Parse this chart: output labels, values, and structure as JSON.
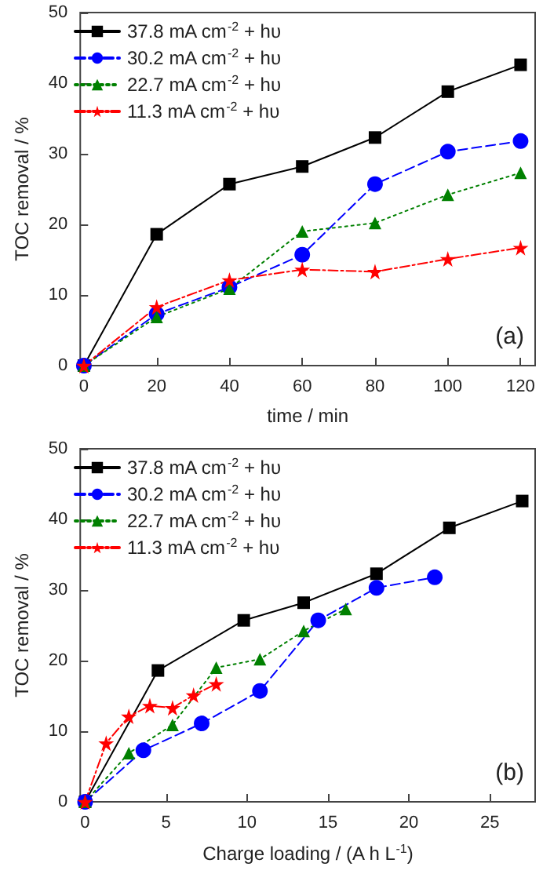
{
  "chart_data": [
    {
      "type": "line",
      "xlabel": "time / min",
      "ylabel": "TOC removal / %",
      "x": [
        0,
        20,
        40,
        60,
        80,
        100,
        120
      ],
      "xlim": [
        -1,
        124
      ],
      "xticks": [
        0,
        20,
        40,
        60,
        80,
        100,
        120
      ],
      "ylim": [
        0,
        50
      ],
      "yticks": [
        0,
        10,
        20,
        30,
        40,
        50
      ],
      "legend": "top left",
      "grid": false,
      "annotations": [
        "(a)"
      ],
      "series": [
        {
          "name": "37.8 mA cm$^{-2}$ + hυ",
          "color": "#000000",
          "marker": "square",
          "line_style": "solid",
          "values": [
            0,
            18.6,
            25.7,
            28.2,
            32.3,
            38.8,
            42.6
          ]
        },
        {
          "name": "30.2 mA cm$^{-2}$ + hυ",
          "color": "#0000ff",
          "marker": "circle",
          "line_style": "dashed",
          "values": [
            0,
            7.3,
            11.1,
            15.7,
            25.7,
            30.3,
            31.8
          ]
        },
        {
          "name": "22.7 mA cm$^{-2}$ + hυ",
          "color": "#008000",
          "marker": "triangle",
          "line_style": "dotted",
          "values": [
            0,
            6.9,
            10.9,
            19.0,
            20.2,
            24.2,
            27.3
          ]
        },
        {
          "name": "11.3 mA cm$^{-2}$ + hυ",
          "color": "#ff0000",
          "marker": "star",
          "line_style": "dashdot",
          "values": [
            0,
            8.3,
            12.1,
            13.6,
            13.3,
            15.1,
            16.7
          ]
        }
      ]
    },
    {
      "type": "line",
      "xlabel": "Charge loading / (A h L$^{-1}$)",
      "ylabel": "TOC removal / %",
      "xlim": [
        -0.3,
        27.8
      ],
      "xticks": [
        0,
        5,
        10,
        15,
        20,
        25
      ],
      "ylim": [
        0,
        50
      ],
      "yticks": [
        0,
        10,
        20,
        30,
        40,
        50
      ],
      "legend": "top left",
      "grid": false,
      "annotations": [
        "(b)"
      ],
      "series": [
        {
          "name": "37.8 mA cm$^{-2}$ + hυ",
          "color": "#000000",
          "marker": "square",
          "line_style": "solid",
          "x": [
            0,
            4.5,
            9.8,
            13.5,
            18.0,
            22.5,
            27.0
          ],
          "values": [
            0,
            18.6,
            25.7,
            28.2,
            32.3,
            38.8,
            42.6
          ]
        },
        {
          "name": "30.2 mA cm$^{-2}$ + hυ",
          "color": "#0000ff",
          "marker": "circle",
          "line_style": "dashed",
          "x": [
            0,
            3.6,
            7.2,
            10.8,
            14.4,
            18.0,
            21.6
          ],
          "values": [
            0,
            7.3,
            11.1,
            15.7,
            25.7,
            30.3,
            31.8
          ]
        },
        {
          "name": "22.7 mA cm$^{-2}$ + hυ",
          "color": "#008000",
          "marker": "triangle",
          "line_style": "dotted",
          "x": [
            0,
            2.7,
            5.4,
            8.1,
            10.8,
            13.5,
            16.1
          ],
          "values": [
            0,
            6.9,
            10.9,
            19.0,
            20.2,
            24.2,
            27.3
          ]
        },
        {
          "name": "11.3 mA cm$^{-2}$ + hυ",
          "color": "#ff0000",
          "marker": "star",
          "line_style": "dashdot",
          "x": [
            0,
            1.3,
            2.7,
            4.0,
            5.4,
            6.7,
            8.1
          ],
          "values": [
            0,
            8.3,
            12.1,
            13.6,
            13.3,
            15.1,
            16.7
          ]
        }
      ]
    }
  ]
}
